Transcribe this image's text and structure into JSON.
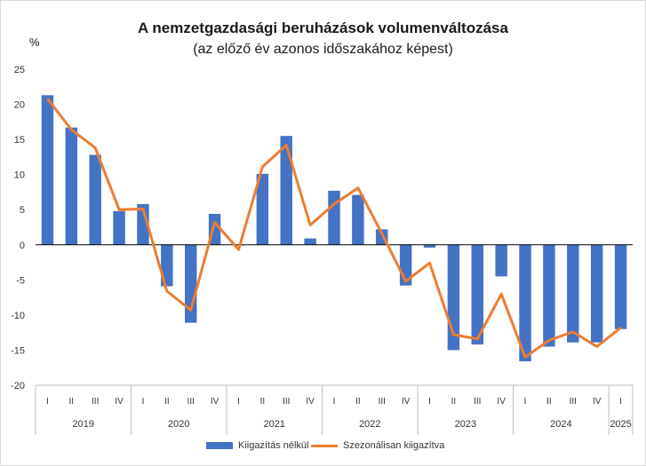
{
  "colors": {
    "bars": "#4472C4",
    "line": "#ED7D31"
  },
  "chart_data": {
    "type": "bar",
    "title": "A nemzetgazdasági beruházások volumenváltozása",
    "subtitle": "(az előző év azonos időszakához képest)",
    "ylabel": "%",
    "ylim": [
      -20,
      25
    ],
    "yticks": [
      25,
      20,
      15,
      10,
      5,
      0,
      -5,
      -10,
      -15,
      -20
    ],
    "grid": false,
    "legend_position": "bottom",
    "categories": [
      "I",
      "II",
      "III",
      "IV",
      "I",
      "II",
      "III",
      "IV",
      "I",
      "II",
      "III",
      "IV",
      "I",
      "II",
      "III",
      "IV",
      "I",
      "II",
      "III",
      "IV",
      "I",
      "II",
      "III",
      "IV",
      "I"
    ],
    "years": [
      {
        "label": "2019",
        "quarters": 4
      },
      {
        "label": "2020",
        "quarters": 4
      },
      {
        "label": "2021",
        "quarters": 4
      },
      {
        "label": "2022",
        "quarters": 4
      },
      {
        "label": "2023",
        "quarters": 4
      },
      {
        "label": "2024",
        "quarters": 4
      },
      {
        "label": "2025",
        "quarters": 1
      }
    ],
    "series": [
      {
        "name": "Kiigazítás nélkül",
        "type": "bar",
        "values": [
          21.3,
          16.7,
          12.8,
          4.8,
          5.8,
          -5.9,
          -11.1,
          4.4,
          -0.1,
          10.1,
          15.5,
          0.9,
          7.7,
          7.1,
          2.2,
          -5.8,
          -0.4,
          -15.0,
          -14.2,
          -4.5,
          -16.6,
          -14.5,
          -13.9,
          -13.9,
          -12.0
        ]
      },
      {
        "name": "Szezonálisan kiigazítva",
        "type": "line",
        "values": [
          20.8,
          16.4,
          13.8,
          5.0,
          5.1,
          -6.6,
          -9.3,
          3.2,
          -0.7,
          11.1,
          14.2,
          2.8,
          5.8,
          8.1,
          1.6,
          -5.2,
          -2.6,
          -12.8,
          -13.4,
          -7.0,
          -16.0,
          -13.6,
          -12.4,
          -14.5,
          -11.8
        ]
      }
    ]
  }
}
